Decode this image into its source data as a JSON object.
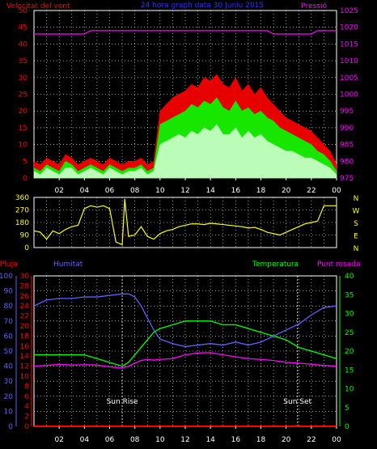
{
  "header": {
    "left_label": "Velocitat del vent",
    "center_label": "24 hora graph data   30 Juniu 2015",
    "right_label": "Pressió",
    "left_color": "#ff0000",
    "center_color": "#3030ff",
    "right_color": "#ff00ff"
  },
  "x_ticks": [
    "02",
    "04",
    "06",
    "08",
    "10",
    "12",
    "14",
    "16",
    "18",
    "20",
    "22",
    "00"
  ],
  "chart_data": [
    {
      "type": "area",
      "id": "wind",
      "left_axis": {
        "ticks": [
          0,
          5,
          10,
          15,
          20,
          25,
          30,
          35,
          40,
          45,
          50
        ],
        "color": "#ff0000"
      },
      "right_axis": {
        "ticks": [
          975,
          980,
          985,
          990,
          995,
          1000,
          1005,
          1010,
          1015,
          1020,
          1025
        ],
        "color": "#ff00ff"
      },
      "x_hours": [
        0,
        0.5,
        1,
        1.5,
        2,
        2.5,
        3,
        3.5,
        4,
        4.5,
        5,
        5.5,
        6,
        6.5,
        7,
        7.5,
        8,
        8.5,
        9,
        9.5,
        10,
        10.5,
        11,
        11.5,
        12,
        12.5,
        13,
        13.5,
        14,
        14.5,
        15,
        15.5,
        16,
        16.5,
        17,
        17.5,
        18,
        18.5,
        19,
        19.5,
        20,
        20.5,
        21,
        21.5,
        22,
        22.5,
        23,
        23.5,
        24
      ],
      "series": [
        {
          "name": "gust",
          "color": "#ff0000",
          "values": [
            5,
            4,
            6,
            5,
            4,
            7,
            6,
            4,
            5,
            6,
            5,
            4,
            6,
            5,
            4,
            5,
            5,
            6,
            4,
            5,
            20,
            22,
            24,
            25,
            26,
            28,
            27,
            30,
            29,
            31,
            28,
            27,
            30,
            26,
            28,
            25,
            27,
            24,
            22,
            20,
            18,
            17,
            16,
            15,
            14,
            12,
            10,
            8,
            4
          ]
        },
        {
          "name": "average",
          "color": "#00ff00",
          "values": [
            3,
            2,
            4,
            3,
            2,
            5,
            4,
            2,
            3,
            4,
            3,
            2,
            4,
            3,
            2,
            3,
            3,
            4,
            2,
            3,
            16,
            17,
            18,
            19,
            20,
            22,
            21,
            23,
            22,
            24,
            21,
            20,
            23,
            20,
            21,
            19,
            20,
            18,
            17,
            15,
            14,
            13,
            12,
            11,
            10,
            8,
            7,
            5,
            2
          ]
        },
        {
          "name": "speed",
          "color": "#ccffcc",
          "values": [
            2,
            1,
            3,
            2,
            1,
            3,
            3,
            1,
            2,
            3,
            2,
            1,
            3,
            2,
            1,
            2,
            2,
            3,
            1,
            2,
            10,
            11,
            12,
            13,
            12,
            14,
            13,
            15,
            14,
            16,
            13,
            13,
            15,
            12,
            14,
            12,
            13,
            11,
            10,
            9,
            8,
            8,
            7,
            6,
            6,
            5,
            4,
            3,
            1
          ]
        },
        {
          "name": "pressure",
          "color": "#ff00ff",
          "values": [
            1018,
            1018,
            1018,
            1018,
            1018,
            1018,
            1018,
            1018,
            1018,
            1019,
            1019,
            1019,
            1019,
            1019,
            1019,
            1019,
            1019,
            1019,
            1019,
            1019,
            1019,
            1019,
            1019,
            1019,
            1019,
            1019,
            1019,
            1019,
            1019,
            1019,
            1019,
            1019,
            1019,
            1019,
            1019,
            1019,
            1019,
            1019,
            1018,
            1018,
            1018,
            1018,
            1018,
            1018,
            1018,
            1019,
            1019,
            1019,
            1019
          ]
        }
      ],
      "ylim": [
        0,
        50
      ],
      "ylim_right": [
        975,
        1025
      ]
    },
    {
      "type": "line",
      "id": "direction",
      "left_axis": {
        "ticks": [
          0,
          90,
          180,
          270,
          360
        ],
        "color": "#ffff00"
      },
      "right_labels": [
        "N",
        "W",
        "S",
        "E",
        "N"
      ],
      "right_color": "#ffff00",
      "series": [
        {
          "name": "direction",
          "color": "#ffff00",
          "x": [
            0,
            0.5,
            1,
            1.5,
            2,
            2.5,
            3,
            3.5,
            4,
            4.5,
            5,
            5.5,
            6,
            6.5,
            7,
            7.2,
            7.5,
            8,
            8.5,
            9,
            9.5,
            10,
            10.5,
            11,
            11.5,
            12,
            12.5,
            13,
            13.5,
            14,
            14.5,
            15,
            15.5,
            16,
            16.5,
            17,
            17.5,
            18,
            18.5,
            19,
            19.5,
            20,
            20.5,
            21,
            21.5,
            22,
            22.5,
            23,
            23.5,
            24
          ],
          "values": [
            120,
            110,
            60,
            120,
            100,
            130,
            150,
            160,
            280,
            300,
            290,
            300,
            280,
            40,
            20,
            350,
            80,
            90,
            150,
            80,
            60,
            100,
            120,
            130,
            150,
            160,
            170,
            170,
            165,
            175,
            170,
            165,
            160,
            155,
            150,
            140,
            145,
            130,
            110,
            100,
            90,
            110,
            130,
            150,
            170,
            180,
            190,
            300,
            300,
            300
          ]
        }
      ],
      "ylim": [
        0,
        360
      ]
    },
    {
      "type": "line",
      "id": "temperature",
      "left_axis_outer": {
        "label": "Pluja",
        "ticks": [
          0,
          10,
          20,
          30,
          40,
          50,
          60,
          70,
          80,
          90,
          100
        ],
        "color": "#6060ff"
      },
      "left_axis_inner": {
        "ticks": [
          0,
          2,
          4,
          6,
          8,
          10,
          12,
          14,
          16,
          18,
          20,
          22,
          24,
          26,
          28,
          30
        ],
        "color": "#ff0000"
      },
      "right_axis": {
        "ticks": [
          0,
          5,
          10,
          15,
          20,
          25,
          30,
          35,
          40
        ],
        "color": "#00ff00"
      },
      "legend": [
        {
          "name": "Humitat",
          "color": "#6060ff"
        },
        {
          "name": "Temperatura",
          "color": "#00ff00"
        },
        {
          "name": "Punt rosada",
          "color": "#ff00ff"
        }
      ],
      "annotations": [
        {
          "text": "Sun Rise",
          "x": 7.0
        },
        {
          "text": "Sun Set",
          "x": 20.9
        }
      ],
      "x_hours": [
        0,
        1,
        2,
        3,
        4,
        5,
        6,
        7,
        7.5,
        8,
        8.5,
        9,
        9.5,
        10,
        11,
        12,
        13,
        14,
        15,
        16,
        17,
        18,
        19,
        20,
        21,
        22,
        23,
        24
      ],
      "series": [
        {
          "name": "Humitat",
          "axis": "left_outer",
          "color": "#6060ff",
          "values": [
            80,
            84,
            85,
            85,
            86,
            86,
            87,
            88,
            88,
            86,
            80,
            72,
            64,
            58,
            55,
            53,
            54,
            55,
            54,
            56,
            54,
            56,
            60,
            64,
            68,
            74,
            79,
            80
          ]
        },
        {
          "name": "Temperatura",
          "axis": "right",
          "color": "#00ff00",
          "values": [
            19,
            19,
            19,
            19,
            19,
            18,
            17,
            16,
            17,
            19,
            21,
            23,
            25,
            26,
            27,
            28,
            28,
            28,
            27,
            27,
            26,
            25,
            24,
            23,
            21,
            20,
            19,
            18
          ]
        },
        {
          "name": "Punt rosada",
          "axis": "right",
          "color": "#ff00ff",
          "values": [
            16,
            16.2,
            16.5,
            16.3,
            16.4,
            16.3,
            15.8,
            15.5,
            16,
            16.8,
            17.5,
            17.8,
            17.6,
            17.8,
            18,
            19,
            19.5,
            19.6,
            19,
            18.5,
            18,
            17.8,
            17.5,
            17,
            16.8,
            16.5,
            16.2,
            16
          ]
        },
        {
          "name": "Pluja",
          "axis": "left_outer",
          "color": "#ff0000",
          "values": [
            0,
            0,
            0,
            0,
            0,
            0,
            0,
            0,
            0,
            0,
            0,
            0,
            0,
            0,
            0,
            0,
            0,
            0,
            0,
            0,
            0,
            0,
            0,
            0,
            0,
            0,
            0,
            0
          ]
        }
      ],
      "ylim_outer": [
        0,
        100
      ],
      "ylim_right": [
        0,
        40
      ]
    }
  ]
}
